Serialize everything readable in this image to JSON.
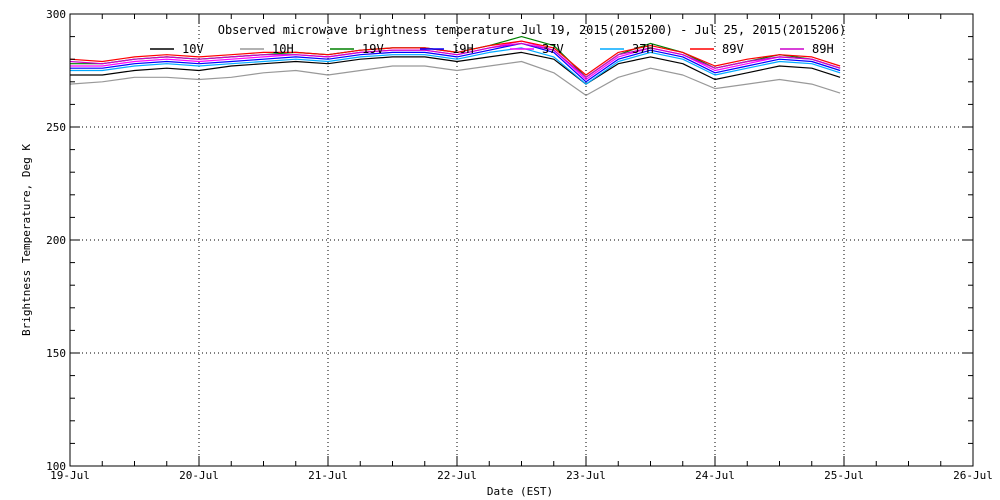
{
  "chart_data": {
    "type": "line",
    "title": "Observed microwave brightness temperature Jul 19, 2015(2015200) - Jul 25, 2015(2015206)",
    "xlabel": "Date (EST)",
    "ylabel": "Brightness Temperature, Deg K",
    "xlim": [
      0,
      7
    ],
    "ylim": [
      100,
      300
    ],
    "x_ticks": [
      {
        "value": 0,
        "label": "19-Jul"
      },
      {
        "value": 1,
        "label": "20-Jul"
      },
      {
        "value": 2,
        "label": "21-Jul"
      },
      {
        "value": 3,
        "label": "22-Jul"
      },
      {
        "value": 4,
        "label": "23-Jul"
      },
      {
        "value": 5,
        "label": "24-Jul"
      },
      {
        "value": 6,
        "label": "25-Jul"
      },
      {
        "value": 7,
        "label": "26-Jul"
      }
    ],
    "y_ticks": [
      100,
      150,
      200,
      250,
      300
    ],
    "grid": true,
    "legend_position": "top",
    "x": [
      0.0,
      0.25,
      0.5,
      0.75,
      1.0,
      1.25,
      1.5,
      1.75,
      2.0,
      2.25,
      2.5,
      2.75,
      3.0,
      3.25,
      3.5,
      3.75,
      4.0,
      4.25,
      4.5,
      4.75,
      5.0,
      5.25,
      5.5,
      5.75,
      5.97
    ],
    "series": [
      {
        "name": "10V",
        "color": "#000000",
        "values": [
          273,
          273,
          275,
          276,
          275,
          277,
          278,
          279,
          278,
          280,
          281,
          281,
          279,
          281,
          283,
          280,
          269,
          278,
          281,
          278,
          271,
          274,
          277,
          276,
          272
        ]
      },
      {
        "name": "10H",
        "color": "#999999",
        "values": [
          269,
          270,
          272,
          272,
          271,
          272,
          274,
          275,
          273,
          275,
          277,
          277,
          275,
          277,
          279,
          274,
          264,
          272,
          276,
          273,
          267,
          269,
          271,
          269,
          265
        ]
      },
      {
        "name": "19V",
        "color": "#008000",
        "values": [
          278,
          278,
          280,
          281,
          280,
          281,
          282,
          283,
          282,
          284,
          285,
          285,
          283,
          286,
          290,
          286,
          272,
          282,
          287,
          283,
          276,
          279,
          282,
          280,
          276
        ]
      },
      {
        "name": "19H",
        "color": "#0000ff",
        "values": [
          276,
          276,
          278,
          279,
          278,
          279,
          280,
          281,
          280,
          282,
          283,
          283,
          281,
          284,
          287,
          283,
          270,
          280,
          284,
          281,
          274,
          277,
          280,
          279,
          275
        ]
      },
      {
        "name": "37V",
        "color": "#ff00ff",
        "values": [
          277,
          277,
          279,
          280,
          279,
          280,
          281,
          282,
          281,
          283,
          284,
          284,
          282,
          285,
          288,
          284,
          271,
          281,
          285,
          282,
          275,
          278,
          281,
          280,
          276
        ]
      },
      {
        "name": "37H",
        "color": "#00aaff",
        "values": [
          275,
          275,
          277,
          278,
          277,
          278,
          279,
          280,
          279,
          281,
          282,
          282,
          280,
          283,
          285,
          281,
          269,
          279,
          283,
          280,
          273,
          276,
          279,
          278,
          274
        ]
      },
      {
        "name": "89V",
        "color": "#ff0000",
        "values": [
          280,
          279,
          281,
          282,
          281,
          282,
          283,
          283,
          282,
          284,
          285,
          285,
          283,
          286,
          288,
          285,
          273,
          283,
          286,
          283,
          277,
          280,
          282,
          281,
          277
        ]
      },
      {
        "name": "89H",
        "color": "#cc00cc",
        "values": [
          279,
          278,
          280,
          281,
          280,
          281,
          282,
          282,
          281,
          283,
          284,
          284,
          282,
          285,
          287,
          284,
          272,
          282,
          285,
          282,
          276,
          279,
          281,
          280,
          276
        ]
      }
    ]
  }
}
